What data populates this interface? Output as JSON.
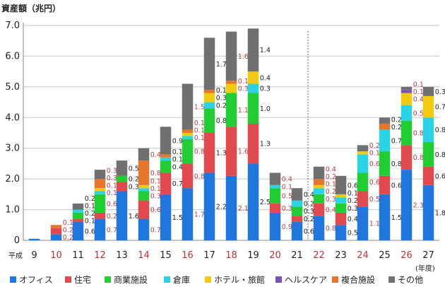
{
  "chart_data": {
    "type": "bar",
    "stacked": true,
    "ylabel": "資産額（兆円）",
    "era_label": "平成",
    "xlabel_unit": "(年度)",
    "ylim": [
      0,
      7.0
    ],
    "yticks": [
      "0",
      "1.0",
      "2.0",
      "3.0",
      "4.0",
      "5.0",
      "6.0",
      "7.0"
    ],
    "categories": [
      "9",
      "10",
      "11",
      "12",
      "13",
      "14",
      "15",
      "16",
      "17",
      "18",
      "19",
      "20",
      "21",
      "22",
      "23",
      "24",
      "25",
      "26",
      "27"
    ],
    "highlight_categories": [
      "10",
      "12",
      "14",
      "16",
      "18",
      "20",
      "22",
      "24",
      "26"
    ],
    "divider_after": "21",
    "series": [
      {
        "name": "オフィス",
        "color": "#1f77dd",
        "values": [
          0.05,
          0.2,
          0.6,
          0.7,
          1.6,
          0.7,
          1.5,
          1.7,
          2.2,
          2.1,
          2.5,
          0.9,
          0.6,
          0.8,
          0.5,
          1.1,
          1.5,
          2.3,
          1.8
        ]
      },
      {
        "name": "住宅",
        "color": "#e04a4f",
        "values": [
          0,
          0.2,
          0.1,
          0.2,
          0.3,
          0.6,
          0.7,
          0.8,
          1.3,
          1.6,
          1.3,
          0.3,
          0.2,
          0.4,
          0.4,
          0.5,
          0.6,
          0.8,
          0.6
        ]
      },
      {
        "name": "商業施設",
        "color": "#22cc33",
        "values": [
          0,
          0,
          0.2,
          0.6,
          0.2,
          0.3,
          0.4,
          0.8,
          0.8,
          1.1,
          1.0,
          0.5,
          0.3,
          0.3,
          0.3,
          0.6,
          0.8,
          0.8,
          0.8
        ]
      },
      {
        "name": "倉庫",
        "color": "#2ad4e4",
        "values": [
          0,
          0,
          0.1,
          0.1,
          0,
          0.1,
          0.1,
          0.1,
          0.2,
          0,
          0.3,
          0.1,
          0.2,
          0.2,
          0.2,
          0.6,
          0.7,
          0.5,
          0.8
        ]
      },
      {
        "name": "ホテル・旅館",
        "color": "#f1cb12",
        "values": [
          0,
          0,
          0,
          0.1,
          0,
          0.1,
          0,
          0.1,
          0.3,
          0.3,
          0.4,
          0,
          0,
          0.1,
          0.1,
          0.1,
          0,
          0.4,
          0.7
        ]
      },
      {
        "name": "ヘルスケア",
        "color": "#7a4fb6",
        "values": [
          0,
          0,
          0,
          0,
          0,
          0,
          0,
          0,
          0,
          0,
          0,
          0,
          0,
          0,
          0,
          0,
          0,
          0.1,
          0
        ]
      },
      {
        "name": "複合施設",
        "color": "#e6752e",
        "values": [
          0,
          0.1,
          0,
          0.3,
          0,
          0.8,
          0.1,
          0.1,
          0.1,
          0.1,
          0,
          0,
          0,
          0.2,
          0,
          0,
          0.2,
          0,
          0
        ]
      },
      {
        "name": "その他",
        "color": "#707070",
        "values": [
          0,
          0,
          0.2,
          0.3,
          0.5,
          0.4,
          0.9,
          1.5,
          1.7,
          1.6,
          1.4,
          0.4,
          0.4,
          0.4,
          0.6,
          0.2,
          0.2,
          0.1,
          0.3
        ]
      }
    ]
  }
}
